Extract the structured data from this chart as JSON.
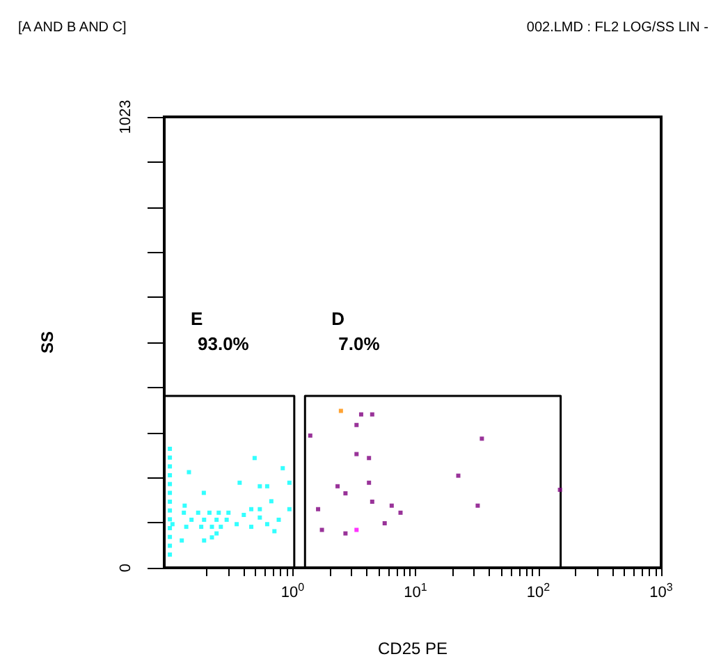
{
  "chart_data": {
    "type": "scatter",
    "title": "[A AND B AND C]",
    "subtitle": "002.LMD : FL2 LOG/SS LIN -",
    "xlabel": "CD25 PE",
    "ylabel": "SS",
    "log": "x",
    "marker": "square",
    "grid": false,
    "xlim": [
      0.09,
      1000
    ],
    "xticks": [
      {
        "value": 0.2,
        "label": null
      },
      {
        "value": 0.3,
        "label": null
      },
      {
        "value": 0.4,
        "label": null
      },
      {
        "value": 0.5,
        "label": null
      },
      {
        "value": 0.6,
        "label": null
      },
      {
        "value": 0.7,
        "label": null
      },
      {
        "value": 0.8,
        "label": null
      },
      {
        "value": 0.9,
        "label": null
      },
      {
        "value": 1,
        "label": "10$^{0}$"
      },
      {
        "value": 2,
        "label": null
      },
      {
        "value": 3,
        "label": null
      },
      {
        "value": 4,
        "label": null
      },
      {
        "value": 5,
        "label": null
      },
      {
        "value": 6,
        "label": null
      },
      {
        "value": 7,
        "label": null
      },
      {
        "value": 8,
        "label": null
      },
      {
        "value": 9,
        "label": null
      },
      {
        "value": 10,
        "label": "10$^{1}$"
      },
      {
        "value": 20,
        "label": null
      },
      {
        "value": 30,
        "label": null
      },
      {
        "value": 40,
        "label": null
      },
      {
        "value": 50,
        "label": null
      },
      {
        "value": 60,
        "label": null
      },
      {
        "value": 70,
        "label": null
      },
      {
        "value": 80,
        "label": null
      },
      {
        "value": 90,
        "label": null
      },
      {
        "value": 100,
        "label": "10$^{2}$"
      },
      {
        "value": 200,
        "label": null
      },
      {
        "value": 300,
        "label": null
      },
      {
        "value": 400,
        "label": null
      },
      {
        "value": 500,
        "label": null
      },
      {
        "value": 600,
        "label": null
      },
      {
        "value": 700,
        "label": null
      },
      {
        "value": 800,
        "label": null
      },
      {
        "value": 900,
        "label": null
      },
      {
        "value": 1000,
        "label": "10$^{3}$"
      }
    ],
    "ylim": [
      0,
      1023
    ],
    "yticks": [
      0,
      {
        "value": 102.3,
        "label": null
      },
      {
        "value": 204.6,
        "label": null
      },
      {
        "value": 306.9,
        "label": null
      },
      {
        "value": 409.2,
        "label": null
      },
      {
        "value": 511.5,
        "label": null
      },
      {
        "value": 613.8,
        "label": null
      },
      {
        "value": 716.1,
        "label": null
      },
      {
        "value": 818.4,
        "label": null
      },
      {
        "value": 920.7,
        "label": null
      },
      1023
    ],
    "series": [
      {
        "color": "#00ffff",
        "x": [
          0.1,
          0.1,
          0.1,
          0.1,
          0.1,
          0.1,
          0.1,
          0.1,
          0.1,
          0.1,
          0.1,
          0.1,
          0.1,
          0.143,
          0.189,
          0.132,
          0.49,
          0.83,
          0.94,
          0.37,
          0.54,
          0.62,
          0.67,
          0.94,
          0.46,
          0.54,
          0.77,
          0.54,
          0.4,
          0.46,
          0.62,
          0.71,
          0.35,
          0.3,
          0.25,
          0.21,
          0.17,
          0.13,
          0.15,
          0.19,
          0.24,
          0.29,
          0.105,
          0.136,
          0.18,
          0.22,
          0.26,
          0.24,
          0.22,
          0.19,
          0.125
        ],
        "values": [
          270,
          250,
          230,
          210,
          190,
          170,
          150,
          130,
          110,
          90,
          70,
          50,
          30,
          217,
          170,
          141,
          249,
          226,
          193,
          193,
          185,
          185,
          151,
          133,
          133,
          133,
          109,
          114,
          120,
          93,
          99,
          83,
          99,
          125,
          125,
          125,
          125,
          125,
          109,
          109,
          109,
          109,
          99,
          93,
          93,
          93,
          93,
          78,
          69,
          62,
          62
        ]
      },
      {
        "color": "#800080",
        "x": [
          3.61,
          4.44,
          3.31,
          1.39,
          34.7,
          3.31,
          4.18,
          22.3,
          2.32,
          4.18,
          2.69,
          150,
          4.44,
          6.4,
          32.1,
          1.61,
          7.55,
          5.61,
          1.73,
          2.69
        ],
        "values": [
          348,
          348,
          324,
          300,
          293,
          258,
          249,
          209,
          185,
          193,
          169,
          177,
          150,
          141,
          141,
          133,
          125,
          101,
          86,
          78
        ]
      },
      {
        "color": "#ff8c00",
        "x": [
          2.47
        ],
        "values": [
          356
        ]
      },
      {
        "color": "#ff00ff",
        "x": [
          3.31
        ],
        "values": [
          86
        ]
      },
      {
        "type": "line",
        "color": "#000000",
        "marker": "none",
        "line_style": "solid",
        "x": [
          0.09,
          1.03,
          1.03,
          0.09
        ],
        "values": [
          390,
          390,
          0,
          0
        ]
      },
      {
        "type": "line",
        "color": "#000000",
        "marker": "none",
        "line_style": "solid",
        "x": [
          1.26,
          1.26,
          152,
          152
        ],
        "values": [
          0,
          390,
          390,
          0
        ]
      }
    ],
    "annotations": [
      "E",
      "93.0%",
      "D",
      "7.0%"
    ]
  }
}
